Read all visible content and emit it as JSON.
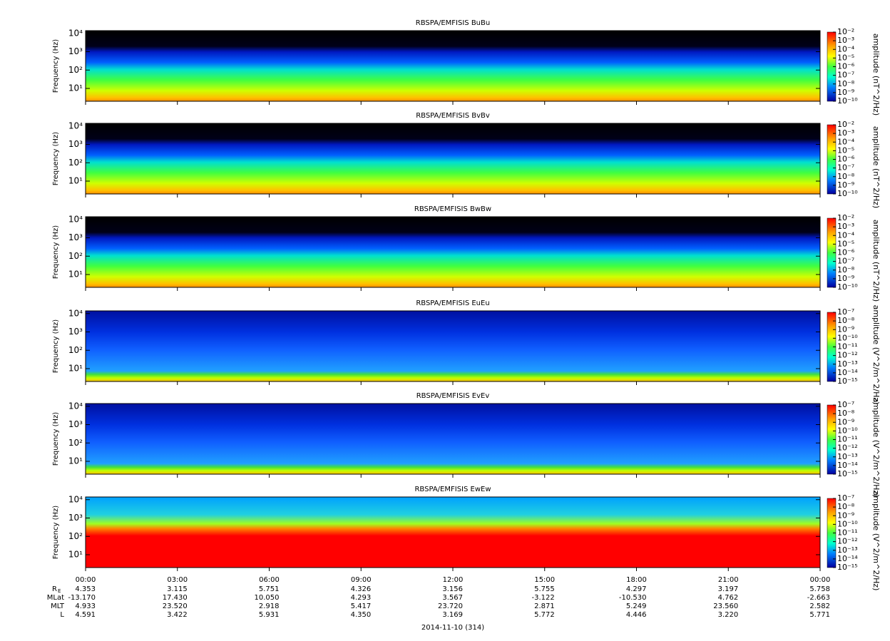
{
  "chart_data": [
    {
      "type": "spectrogram",
      "title": "RBSPA/EMFISIS  BuBu",
      "ylabel": "Frequency (Hz)",
      "log_y": true,
      "ylim": [
        2,
        14000
      ],
      "yticks": [
        {
          "value": 10,
          "label": "10¹"
        },
        {
          "value": 100,
          "label": "10²"
        },
        {
          "value": 1000,
          "label": "10³"
        },
        {
          "value": 10000,
          "label": "10⁴"
        }
      ],
      "colorbar": {
        "label": "amplitude (nT^2/Hz)",
        "lim": [
          1e-10,
          0.01
        ],
        "ticks": [
          {
            "value": 0.01,
            "label": "10⁻²"
          },
          {
            "value": 0.001,
            "label": "10⁻³"
          },
          {
            "value": 0.0001,
            "label": "10⁻⁴"
          },
          {
            "value": 1e-05,
            "label": "10⁻⁵"
          },
          {
            "value": 1e-06,
            "label": "10⁻⁶"
          },
          {
            "value": 1e-07,
            "label": "10⁻⁷"
          },
          {
            "value": 1e-08,
            "label": "10⁻⁸"
          },
          {
            "value": 1e-09,
            "label": "10⁻⁹"
          },
          {
            "value": 1e-10,
            "label": "10⁻¹⁰"
          }
        ]
      }
    },
    {
      "type": "spectrogram",
      "title": "RBSPA/EMFISIS  BvBv",
      "ylabel": "Frequency (Hz)",
      "log_y": true,
      "ylim": [
        2,
        14000
      ],
      "yticks": [
        {
          "value": 10,
          "label": "10¹"
        },
        {
          "value": 100,
          "label": "10²"
        },
        {
          "value": 1000,
          "label": "10³"
        },
        {
          "value": 10000,
          "label": "10⁴"
        }
      ],
      "colorbar": {
        "label": "amplitude (nT^2/Hz)",
        "lim": [
          1e-10,
          0.01
        ],
        "ticks": [
          {
            "value": 0.01,
            "label": "10⁻²"
          },
          {
            "value": 0.001,
            "label": "10⁻³"
          },
          {
            "value": 0.0001,
            "label": "10⁻⁴"
          },
          {
            "value": 1e-05,
            "label": "10⁻⁵"
          },
          {
            "value": 1e-06,
            "label": "10⁻⁶"
          },
          {
            "value": 1e-07,
            "label": "10⁻⁷"
          },
          {
            "value": 1e-08,
            "label": "10⁻⁸"
          },
          {
            "value": 1e-09,
            "label": "10⁻⁹"
          },
          {
            "value": 1e-10,
            "label": "10⁻¹⁰"
          }
        ]
      }
    },
    {
      "type": "spectrogram",
      "title": "RBSPA/EMFISIS  BwBw",
      "ylabel": "Frequency (Hz)",
      "log_y": true,
      "ylim": [
        2,
        14000
      ],
      "yticks": [
        {
          "value": 10,
          "label": "10¹"
        },
        {
          "value": 100,
          "label": "10²"
        },
        {
          "value": 1000,
          "label": "10³"
        },
        {
          "value": 10000,
          "label": "10⁴"
        }
      ],
      "colorbar": {
        "label": "amplitude (nT^2/Hz)",
        "lim": [
          1e-10,
          0.01
        ],
        "ticks": [
          {
            "value": 0.01,
            "label": "10⁻²"
          },
          {
            "value": 0.001,
            "label": "10⁻³"
          },
          {
            "value": 0.0001,
            "label": "10⁻⁴"
          },
          {
            "value": 1e-05,
            "label": "10⁻⁵"
          },
          {
            "value": 1e-06,
            "label": "10⁻⁶"
          },
          {
            "value": 1e-07,
            "label": "10⁻⁷"
          },
          {
            "value": 1e-08,
            "label": "10⁻⁸"
          },
          {
            "value": 1e-09,
            "label": "10⁻⁹"
          },
          {
            "value": 1e-10,
            "label": "10⁻¹⁰"
          }
        ]
      }
    },
    {
      "type": "spectrogram",
      "title": "RBSPA/EMFISIS  EuEu",
      "ylabel": "Frequency (Hz)",
      "log_y": true,
      "ylim": [
        2,
        14000
      ],
      "yticks": [
        {
          "value": 10,
          "label": "10¹"
        },
        {
          "value": 100,
          "label": "10²"
        },
        {
          "value": 1000,
          "label": "10³"
        },
        {
          "value": 10000,
          "label": "10⁴"
        }
      ],
      "colorbar": {
        "label": "amplitude (V^2/m^2/Hz)",
        "lim": [
          1e-15,
          1e-07
        ],
        "ticks": [
          {
            "value": 1e-07,
            "label": "10⁻⁷"
          },
          {
            "value": 1e-08,
            "label": "10⁻⁸"
          },
          {
            "value": 1e-09,
            "label": "10⁻⁹"
          },
          {
            "value": 1e-10,
            "label": "10⁻¹⁰"
          },
          {
            "value": 1e-11,
            "label": "10⁻¹¹"
          },
          {
            "value": 1e-12,
            "label": "10⁻¹²"
          },
          {
            "value": 1e-13,
            "label": "10⁻¹³"
          },
          {
            "value": 1e-14,
            "label": "10⁻¹⁴"
          },
          {
            "value": 1e-15,
            "label": "10⁻¹⁵"
          }
        ]
      }
    },
    {
      "type": "spectrogram",
      "title": "RBSPA/EMFISIS  EvEv",
      "ylabel": "Frequency (Hz)",
      "log_y": true,
      "ylim": [
        2,
        14000
      ],
      "yticks": [
        {
          "value": 10,
          "label": "10¹"
        },
        {
          "value": 100,
          "label": "10²"
        },
        {
          "value": 1000,
          "label": "10³"
        },
        {
          "value": 10000,
          "label": "10⁴"
        }
      ],
      "colorbar": {
        "label": "amplitude (V^2/m^2/Hz)",
        "lim": [
          1e-15,
          1e-07
        ],
        "ticks": [
          {
            "value": 1e-07,
            "label": "10⁻⁷"
          },
          {
            "value": 1e-08,
            "label": "10⁻⁸"
          },
          {
            "value": 1e-09,
            "label": "10⁻⁹"
          },
          {
            "value": 1e-10,
            "label": "10⁻¹⁰"
          },
          {
            "value": 1e-11,
            "label": "10⁻¹¹"
          },
          {
            "value": 1e-12,
            "label": "10⁻¹²"
          },
          {
            "value": 1e-13,
            "label": "10⁻¹³"
          },
          {
            "value": 1e-14,
            "label": "10⁻¹⁴"
          },
          {
            "value": 1e-15,
            "label": "10⁻¹⁵"
          }
        ]
      }
    },
    {
      "type": "spectrogram",
      "title": "RBSPA/EMFISIS  EwEw",
      "ylabel": "Frequency (Hz)",
      "log_y": true,
      "ylim": [
        2,
        14000
      ],
      "yticks": [
        {
          "value": 10,
          "label": "10¹"
        },
        {
          "value": 100,
          "label": "10²"
        },
        {
          "value": 1000,
          "label": "10³"
        },
        {
          "value": 10000,
          "label": "10⁴"
        }
      ],
      "colorbar": {
        "label": "amplitude (V^2/m^2/Hz)",
        "lim": [
          1e-15,
          1e-07
        ],
        "ticks": [
          {
            "value": 1e-07,
            "label": "10⁻⁷"
          },
          {
            "value": 1e-08,
            "label": "10⁻⁸"
          },
          {
            "value": 1e-09,
            "label": "10⁻⁹"
          },
          {
            "value": 1e-10,
            "label": "10⁻¹⁰"
          },
          {
            "value": 1e-11,
            "label": "10⁻¹¹"
          },
          {
            "value": 1e-12,
            "label": "10⁻¹²"
          },
          {
            "value": 1e-13,
            "label": "10⁻¹³"
          },
          {
            "value": 1e-14,
            "label": "10⁻¹⁴"
          },
          {
            "value": 1e-15,
            "label": "10⁻¹⁵"
          }
        ]
      },
      "xlabel": "2014-11-10 (314)",
      "xlim": [
        0,
        24
      ],
      "xticks": [
        {
          "value": 0,
          "label": "00:00"
        },
        {
          "value": 3,
          "label": "03:00"
        },
        {
          "value": 6,
          "label": "06:00"
        },
        {
          "value": 9,
          "label": "09:00"
        },
        {
          "value": 12,
          "label": "12:00"
        },
        {
          "value": 15,
          "label": "15:00"
        },
        {
          "value": 18,
          "label": "18:00"
        },
        {
          "value": 21,
          "label": "21:00"
        },
        {
          "value": 24,
          "label": "00:00"
        }
      ],
      "ephemeris": [
        {
          "name": "R",
          "subscript": "E",
          "values": [
            "4.353",
            "3.115",
            "5.751",
            "4.326",
            "3.156",
            "5.755",
            "4.297",
            "3.197",
            "5.758"
          ]
        },
        {
          "name": "MLat",
          "values": [
            "-13.170",
            "17.430",
            "10.050",
            "4.293",
            "3.567",
            "-3.122",
            "-10.530",
            "4.762",
            "-2.663"
          ]
        },
        {
          "name": "MLT",
          "values": [
            "4.933",
            "23.520",
            "2.918",
            "5.417",
            "23.720",
            "2.871",
            "5.249",
            "23.560",
            "2.582"
          ]
        },
        {
          "name": "L",
          "values": [
            "4.591",
            "3.422",
            "5.931",
            "4.350",
            "3.169",
            "5.772",
            "4.446",
            "3.220",
            "5.771"
          ]
        }
      ]
    }
  ]
}
